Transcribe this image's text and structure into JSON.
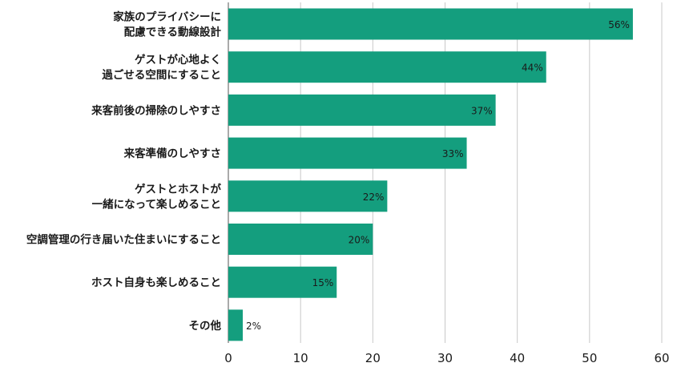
{
  "chart_data": {
    "type": "bar",
    "orientation": "horizontal",
    "categories": [
      [
        "家族のプライバシーに",
        "配慮できる動線設計"
      ],
      [
        "ゲストが心地よく",
        "過ごせる空間にすること"
      ],
      [
        "来客前後の掃除のしやすさ"
      ],
      [
        "来客準備のしやすさ"
      ],
      [
        "ゲストとホストが",
        "一緒になって楽しめること"
      ],
      [
        "空調管理の行き届いた住まいにすること"
      ],
      [
        "ホスト自身も楽しめること"
      ],
      [
        "その他"
      ]
    ],
    "values": [
      56,
      44,
      37,
      33,
      22,
      20,
      15,
      2
    ],
    "value_labels": [
      "56%",
      "44%",
      "37%",
      "33%",
      "22%",
      "20%",
      "15%",
      "2%"
    ],
    "xlim": [
      0,
      60
    ],
    "xticks": [
      0,
      10,
      20,
      30,
      40,
      50,
      60
    ],
    "grid": true,
    "bar_color": "#149e7e"
  }
}
